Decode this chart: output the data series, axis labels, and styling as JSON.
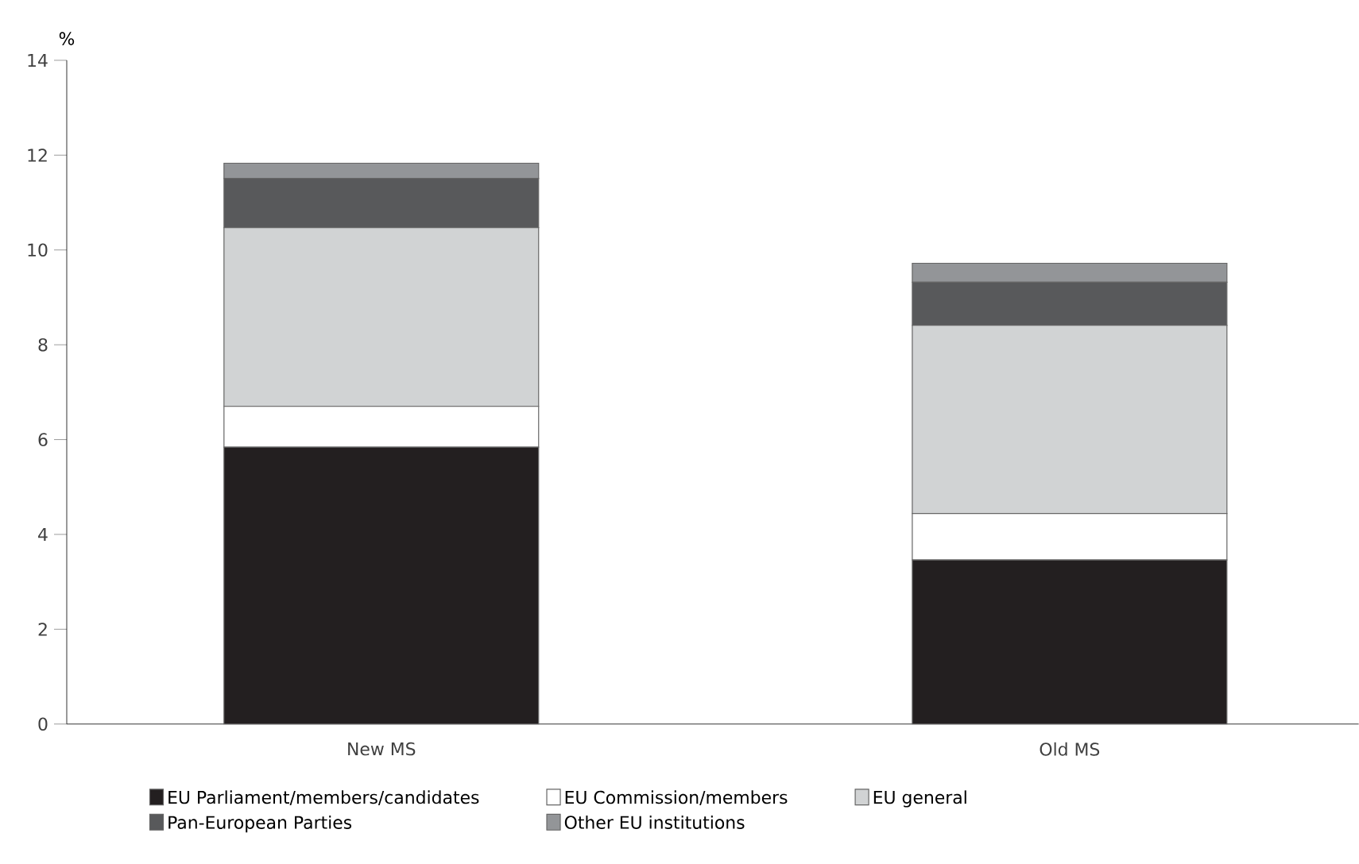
{
  "chart_data": {
    "type": "bar",
    "stacked": true,
    "ylabel": "%",
    "categories": [
      "New MS",
      "Old MS"
    ],
    "ylim": [
      0,
      14
    ],
    "yticks": [
      0,
      2,
      4,
      6,
      8,
      10,
      12,
      14
    ],
    "grid": false,
    "legend": "bottom",
    "series": [
      {
        "name": "EU Parliament/members/candidates",
        "color": "#231f20",
        "values": [
          5.84,
          3.46
        ]
      },
      {
        "name": "EU Commission/members",
        "color": "#ffffff",
        "values": [
          0.86,
          0.98
        ]
      },
      {
        "name": "EU general",
        "color": "#d1d3d4",
        "values": [
          3.77,
          3.97
        ]
      },
      {
        "name": "Pan-European Parties",
        "color": "#58595b",
        "values": [
          1.04,
          0.91
        ]
      },
      {
        "name": "Other EU institutions",
        "color": "#939598",
        "values": [
          0.32,
          0.4
        ]
      }
    ]
  }
}
